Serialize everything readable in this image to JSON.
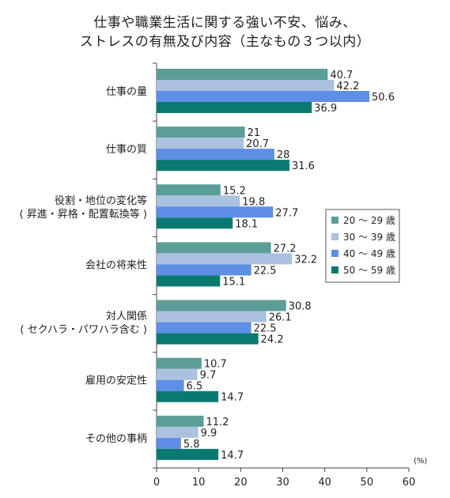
{
  "chart_data": {
    "type": "bar",
    "orientation": "horizontal",
    "title_lines": [
      "仕事や職業生活に関する強い不安、悩み、",
      "ストレスの有無及び内容（主なもの３つ以内）"
    ],
    "unit": "(%)",
    "xlim": [
      0,
      60
    ],
    "xticks": [
      "0",
      "10",
      "20",
      "30",
      "40",
      "50",
      "60"
    ],
    "categories": [
      [
        "仕事の量"
      ],
      [
        "仕事の質"
      ],
      [
        "役割・地位の変化等",
        "( 昇進・昇格・配置転換等 )"
      ],
      [
        "会社の将来性"
      ],
      [
        "対人関係",
        "( セクハラ・パワハラ含む )"
      ],
      [
        "雇用の安定性"
      ],
      [
        "その他の事柄"
      ]
    ],
    "series": [
      {
        "name": "20 ～ 29 歳",
        "color": "#5b9e97",
        "values": [
          40.7,
          21,
          15.2,
          27.2,
          30.8,
          10.7,
          11.2
        ]
      },
      {
        "name": "30 ～ 39 歳",
        "color": "#aac1e0",
        "values": [
          42.2,
          20.7,
          19.8,
          32.2,
          26.1,
          9.7,
          9.9
        ]
      },
      {
        "name": "40 ～ 49 歳",
        "color": "#5e8ee6",
        "values": [
          50.6,
          28,
          27.7,
          22.5,
          22.5,
          6.5,
          5.8
        ]
      },
      {
        "name": "50 ～ 59 歳",
        "color": "#0a7a70",
        "values": [
          36.9,
          31.6,
          18.1,
          15.1,
          24.2,
          14.7,
          14.7
        ]
      }
    ],
    "legend_position": "right"
  }
}
